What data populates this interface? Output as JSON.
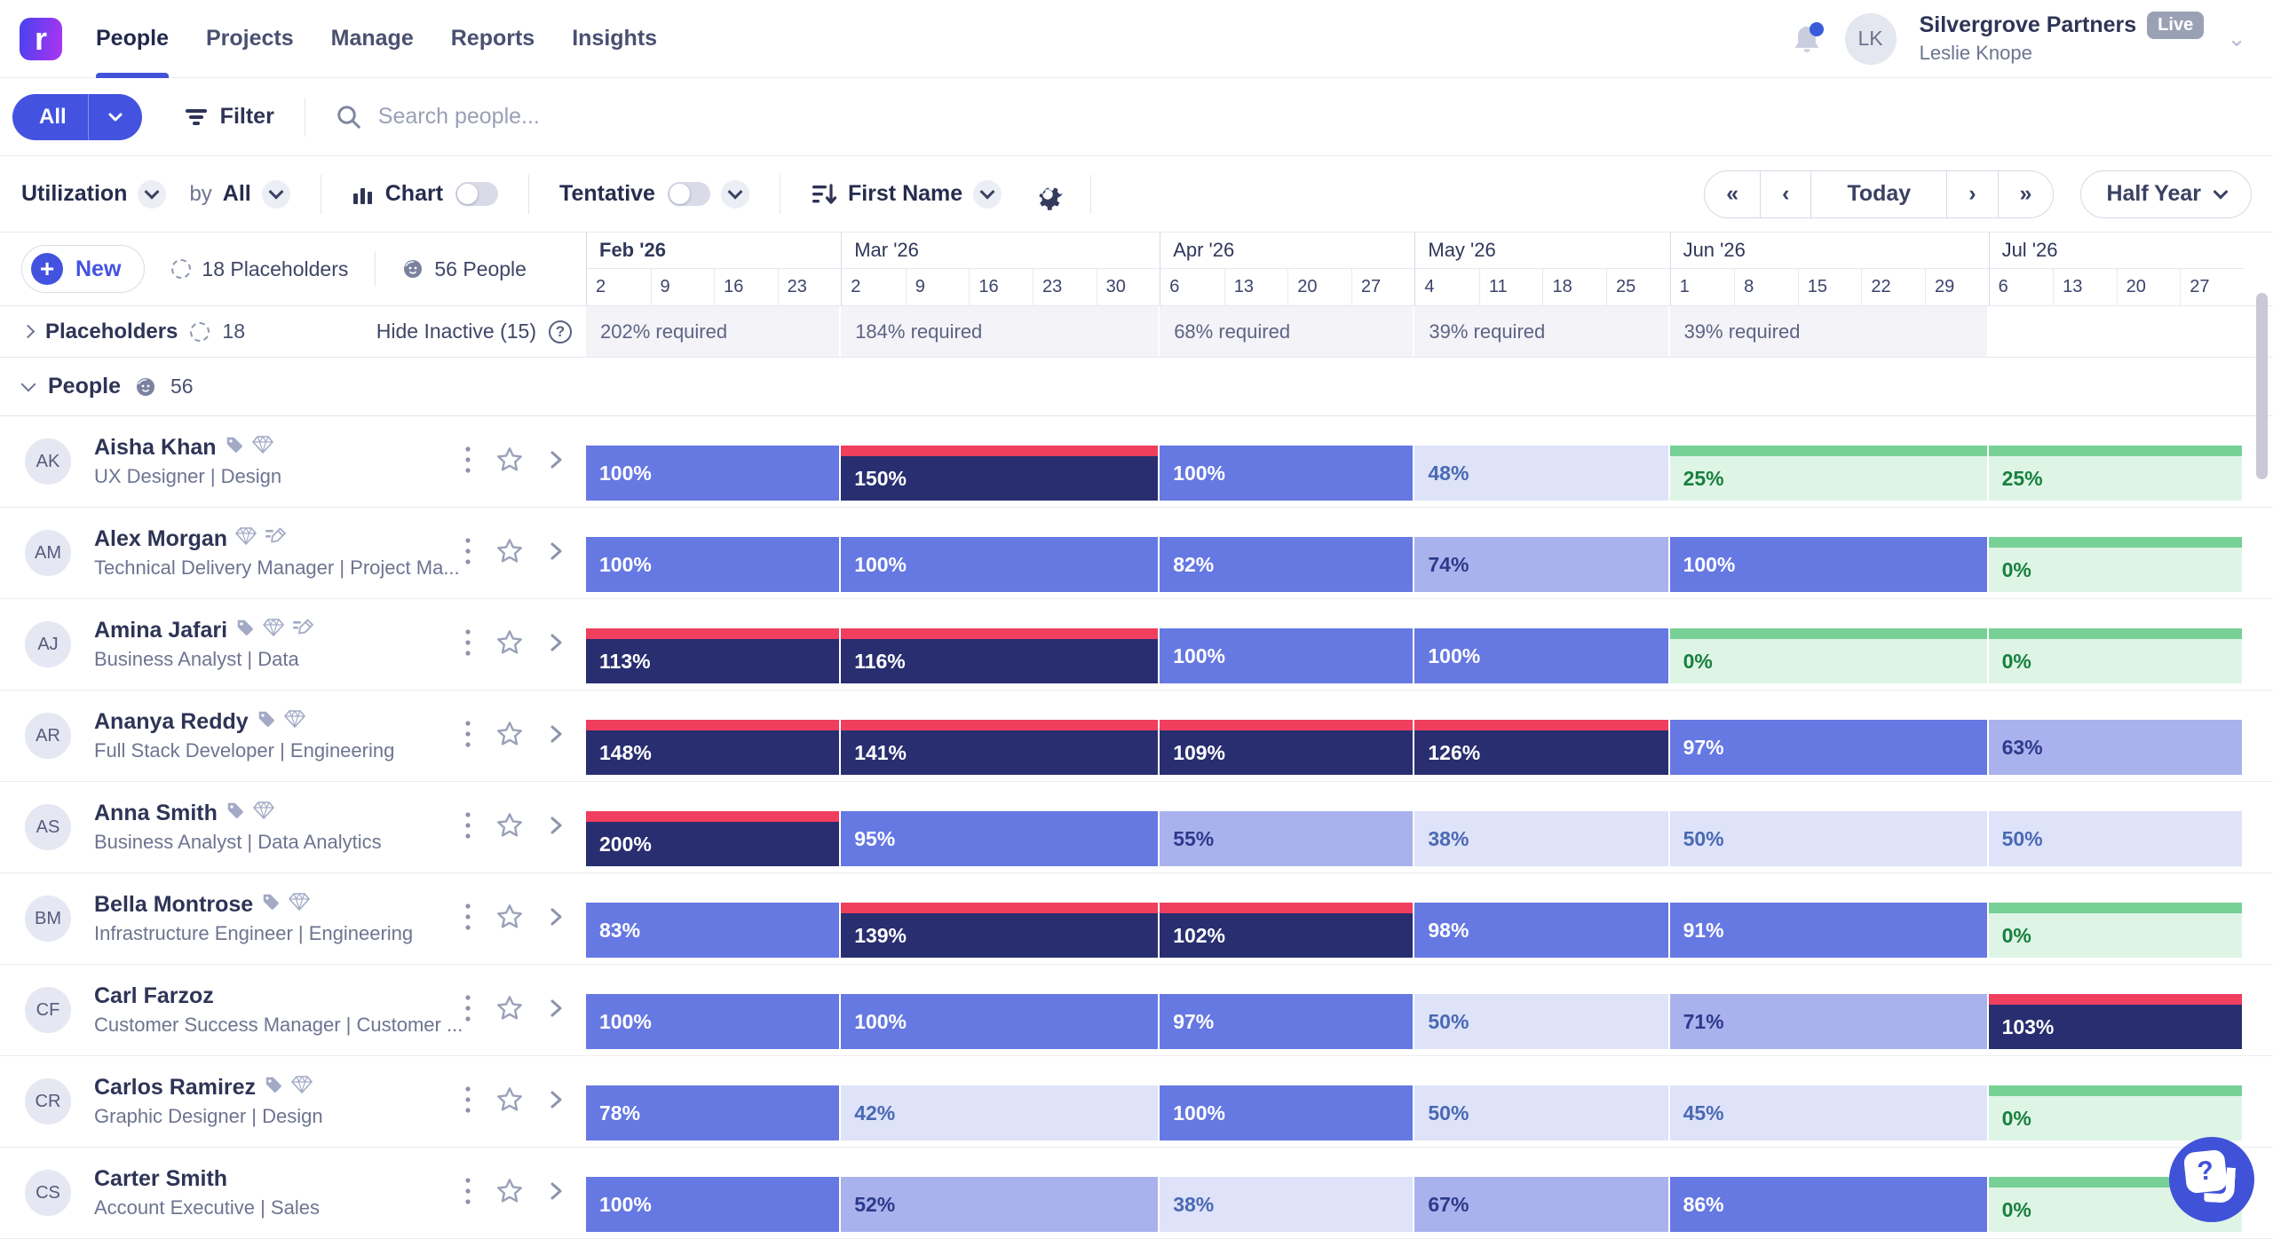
{
  "brand": {
    "logo_letter": "r"
  },
  "nav": {
    "items": [
      "People",
      "Projects",
      "Manage",
      "Reports",
      "Insights"
    ],
    "active": "People"
  },
  "account": {
    "company": "Silvergrove Partners",
    "badge": "Live",
    "user": "Leslie Knope",
    "initials": "LK"
  },
  "filter_bar": {
    "all_label": "All",
    "filter_label": "Filter",
    "search_placeholder": "Search people..."
  },
  "toolbar": {
    "view_label": "Utilization",
    "by_label": "by",
    "by_value": "All",
    "chart_label": "Chart",
    "chart_on": false,
    "tentative_label": "Tentative",
    "tentative_on": false,
    "sort_value": "First Name",
    "today_label": "Today",
    "range_label": "Half Year",
    "nav_arrows": [
      "«",
      "‹",
      "›",
      "»"
    ]
  },
  "counts_bar": {
    "new_label": "New",
    "placeholders_label": "18 Placeholders",
    "people_label": "56 People"
  },
  "timeline": {
    "months": [
      {
        "label": "Feb '26",
        "bold": true,
        "weeks": [
          "2",
          "9",
          "16",
          "23"
        ],
        "required": "202% required"
      },
      {
        "label": "Mar '26",
        "bold": false,
        "weeks": [
          "2",
          "9",
          "16",
          "23",
          "30"
        ],
        "required": "184% required"
      },
      {
        "label": "Apr '26",
        "bold": false,
        "weeks": [
          "6",
          "13",
          "20",
          "27"
        ],
        "required": "68% required"
      },
      {
        "label": "May '26",
        "bold": false,
        "weeks": [
          "4",
          "11",
          "18",
          "25"
        ],
        "required": "39% required"
      },
      {
        "label": "Jun '26",
        "bold": false,
        "weeks": [
          "1",
          "8",
          "15",
          "22",
          "29"
        ],
        "required": "39% required"
      },
      {
        "label": "Jul '26",
        "bold": false,
        "weeks": [
          "6",
          "13",
          "20",
          "27"
        ],
        "required": ""
      }
    ]
  },
  "placeholders_row": {
    "label": "Placeholders",
    "count": "18",
    "hide_inactive_label": "Hide Inactive (15)"
  },
  "people_section": {
    "label": "People",
    "count": "56"
  },
  "people": [
    {
      "initials": "AK",
      "name": "Aisha Khan",
      "icons": [
        "tag",
        "diamond"
      ],
      "role": "UX Designer | Design",
      "cells": [
        {
          "value": "100%",
          "tier": "full"
        },
        {
          "value": "150%",
          "tier": "over"
        },
        {
          "value": "100%",
          "tier": "full"
        },
        {
          "value": "48%",
          "tier": "low"
        },
        {
          "value": "25%",
          "tier": "green"
        },
        {
          "value": "25%",
          "tier": "green"
        }
      ]
    },
    {
      "initials": "AM",
      "name": "Alex Morgan",
      "icons": [
        "diamond",
        "pencil"
      ],
      "role": "Technical Delivery Manager | Project Ma...",
      "cells": [
        {
          "value": "100%",
          "tier": "full"
        },
        {
          "value": "100%",
          "tier": "full"
        },
        {
          "value": "82%",
          "tier": "full"
        },
        {
          "value": "74%",
          "tier": "mid"
        },
        {
          "value": "100%",
          "tier": "full"
        },
        {
          "value": "0%",
          "tier": "green"
        }
      ]
    },
    {
      "initials": "AJ",
      "name": "Amina Jafari",
      "icons": [
        "tag",
        "diamond",
        "pencil"
      ],
      "role": "Business Analyst | Data",
      "cells": [
        {
          "value": "113%",
          "tier": "over"
        },
        {
          "value": "116%",
          "tier": "over"
        },
        {
          "value": "100%",
          "tier": "full"
        },
        {
          "value": "100%",
          "tier": "full"
        },
        {
          "value": "0%",
          "tier": "green"
        },
        {
          "value": "0%",
          "tier": "green"
        }
      ]
    },
    {
      "initials": "AR",
      "name": "Ananya Reddy",
      "icons": [
        "tag",
        "diamond"
      ],
      "role": "Full Stack Developer | Engineering",
      "cells": [
        {
          "value": "148%",
          "tier": "over"
        },
        {
          "value": "141%",
          "tier": "over"
        },
        {
          "value": "109%",
          "tier": "over"
        },
        {
          "value": "126%",
          "tier": "over"
        },
        {
          "value": "97%",
          "tier": "full"
        },
        {
          "value": "63%",
          "tier": "mid"
        }
      ]
    },
    {
      "initials": "AS",
      "name": "Anna Smith",
      "icons": [
        "tag",
        "diamond"
      ],
      "role": "Business Analyst | Data Analytics",
      "cells": [
        {
          "value": "200%",
          "tier": "over"
        },
        {
          "value": "95%",
          "tier": "full"
        },
        {
          "value": "55%",
          "tier": "mid"
        },
        {
          "value": "38%",
          "tier": "low"
        },
        {
          "value": "50%",
          "tier": "low"
        },
        {
          "value": "50%",
          "tier": "low"
        }
      ]
    },
    {
      "initials": "BM",
      "name": "Bella Montrose",
      "icons": [
        "tag",
        "diamond"
      ],
      "role": "Infrastructure Engineer | Engineering",
      "cells": [
        {
          "value": "83%",
          "tier": "full"
        },
        {
          "value": "139%",
          "tier": "over"
        },
        {
          "value": "102%",
          "tier": "over"
        },
        {
          "value": "98%",
          "tier": "full"
        },
        {
          "value": "91%",
          "tier": "full"
        },
        {
          "value": "0%",
          "tier": "green"
        }
      ]
    },
    {
      "initials": "CF",
      "name": "Carl Farzoz",
      "icons": [],
      "role": "Customer Success Manager | Customer ...",
      "cells": [
        {
          "value": "100%",
          "tier": "full"
        },
        {
          "value": "100%",
          "tier": "full"
        },
        {
          "value": "97%",
          "tier": "full"
        },
        {
          "value": "50%",
          "tier": "low"
        },
        {
          "value": "71%",
          "tier": "mid"
        },
        {
          "value": "103%",
          "tier": "over"
        }
      ]
    },
    {
      "initials": "CR",
      "name": "Carlos Ramirez",
      "icons": [
        "tag",
        "diamond"
      ],
      "role": "Graphic Designer | Design",
      "cells": [
        {
          "value": "78%",
          "tier": "full"
        },
        {
          "value": "42%",
          "tier": "low"
        },
        {
          "value": "100%",
          "tier": "full"
        },
        {
          "value": "50%",
          "tier": "low"
        },
        {
          "value": "45%",
          "tier": "low"
        },
        {
          "value": "0%",
          "tier": "green"
        }
      ]
    },
    {
      "initials": "CS",
      "name": "Carter Smith",
      "icons": [],
      "role": "Account Executive | Sales",
      "cells": [
        {
          "value": "100%",
          "tier": "full"
        },
        {
          "value": "52%",
          "tier": "mid"
        },
        {
          "value": "38%",
          "tier": "low"
        },
        {
          "value": "67%",
          "tier": "mid"
        },
        {
          "value": "86%",
          "tier": "full"
        },
        {
          "value": "0%",
          "tier": "green"
        }
      ]
    }
  ],
  "colors": {
    "accent": "#4353e0",
    "tier_full": "#6678e2",
    "tier_over": "#282e70",
    "tier_over_stripe": "#f03e5e",
    "tier_mid": "#a9b2ed",
    "tier_low": "#dee3f9",
    "tier_green_bg": "#def5e6",
    "tier_green_stripe": "#77d096",
    "live_badge_bg": "#9ba1b5",
    "logo_gradient_start": "#4f41ee",
    "logo_gradient_end": "#a935f1"
  }
}
